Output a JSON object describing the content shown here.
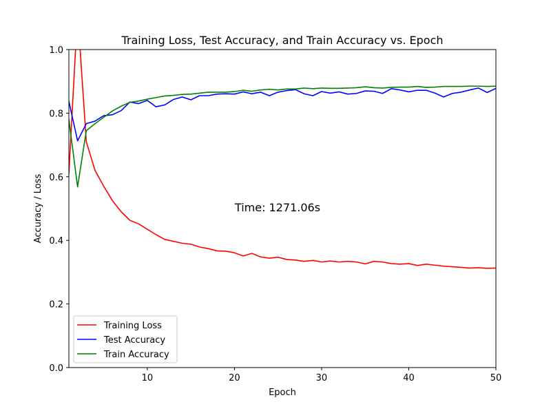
{
  "chart_data": {
    "type": "line",
    "title": "Training Loss, Test Accuracy, and Train Accuracy vs. Epoch",
    "xlabel": "Epoch",
    "ylabel": "Accuracy / Loss",
    "xlim": [
      1,
      50
    ],
    "ylim": [
      0.0,
      1.0
    ],
    "x_ticks": [
      10,
      20,
      30,
      40,
      50
    ],
    "y_ticks": [
      0.0,
      0.2,
      0.4,
      0.6,
      0.8,
      1.0
    ],
    "x_tick_labels": [
      "10",
      "20",
      "30",
      "40",
      "50"
    ],
    "y_tick_labels": [
      "0.0",
      "0.2",
      "0.4",
      "0.6",
      "0.8",
      "1.0"
    ],
    "grid": false,
    "legend_position": "bottom-left",
    "annotation": "Time: 1271.06s",
    "x": [
      1,
      2,
      3,
      4,
      5,
      6,
      7,
      8,
      9,
      10,
      11,
      12,
      13,
      14,
      15,
      16,
      17,
      18,
      19,
      20,
      21,
      22,
      23,
      24,
      25,
      26,
      27,
      28,
      29,
      30,
      31,
      32,
      33,
      34,
      35,
      36,
      37,
      38,
      39,
      40,
      41,
      42,
      43,
      44,
      45,
      46,
      47,
      48,
      49,
      50
    ],
    "series": [
      {
        "name": "Training Loss",
        "color": "#ff0000",
        "values": [
          0.61,
          1.12,
          0.71,
          0.62,
          0.57,
          0.525,
          0.49,
          0.463,
          0.452,
          0.435,
          0.418,
          0.403,
          0.397,
          0.391,
          0.388,
          0.379,
          0.374,
          0.367,
          0.366,
          0.361,
          0.351,
          0.359,
          0.348,
          0.344,
          0.347,
          0.34,
          0.338,
          0.334,
          0.337,
          0.332,
          0.335,
          0.332,
          0.334,
          0.332,
          0.326,
          0.334,
          0.332,
          0.327,
          0.325,
          0.327,
          0.321,
          0.325,
          0.322,
          0.319,
          0.317,
          0.315,
          0.313,
          0.314,
          0.312,
          0.313
        ]
      },
      {
        "name": "Test Accuracy",
        "color": "#0000ff",
        "values": [
          0.837,
          0.713,
          0.767,
          0.775,
          0.792,
          0.795,
          0.808,
          0.835,
          0.83,
          0.84,
          0.82,
          0.826,
          0.843,
          0.851,
          0.842,
          0.855,
          0.855,
          0.86,
          0.861,
          0.86,
          0.867,
          0.861,
          0.866,
          0.855,
          0.866,
          0.871,
          0.874,
          0.861,
          0.855,
          0.868,
          0.863,
          0.867,
          0.86,
          0.862,
          0.87,
          0.869,
          0.862,
          0.877,
          0.873,
          0.867,
          0.872,
          0.872,
          0.863,
          0.851,
          0.862,
          0.866,
          0.873,
          0.879,
          0.865,
          0.878
        ]
      },
      {
        "name": "Train Accuracy",
        "color": "#008000",
        "values": [
          0.78,
          0.568,
          0.745,
          0.767,
          0.787,
          0.807,
          0.822,
          0.834,
          0.838,
          0.844,
          0.849,
          0.854,
          0.856,
          0.859,
          0.86,
          0.863,
          0.866,
          0.866,
          0.866,
          0.868,
          0.872,
          0.869,
          0.873,
          0.875,
          0.873,
          0.876,
          0.876,
          0.879,
          0.877,
          0.879,
          0.878,
          0.878,
          0.879,
          0.88,
          0.883,
          0.88,
          0.879,
          0.881,
          0.882,
          0.882,
          0.884,
          0.881,
          0.882,
          0.884,
          0.884,
          0.884,
          0.885,
          0.885,
          0.884,
          0.885
        ]
      }
    ]
  }
}
